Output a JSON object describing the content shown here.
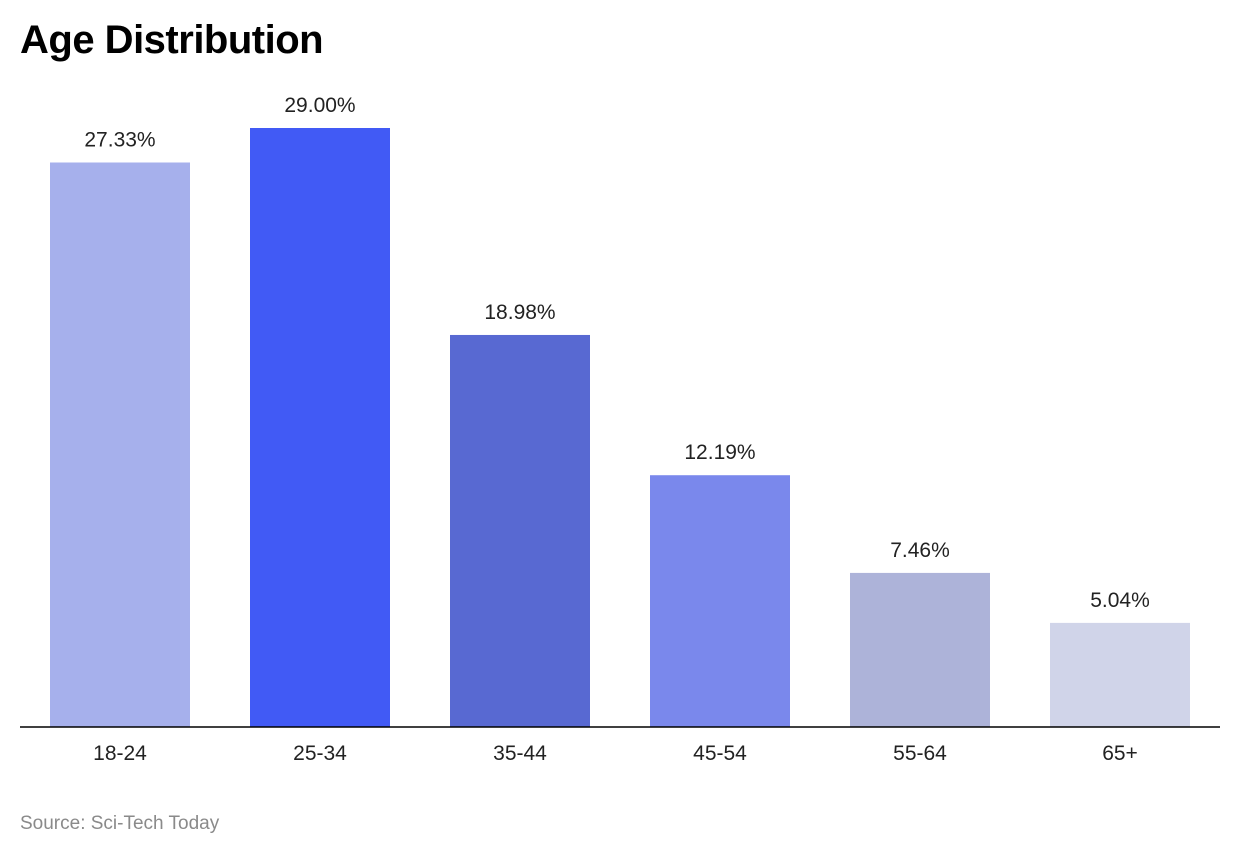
{
  "chart_data": {
    "type": "bar",
    "title": "Age Distribution",
    "categories": [
      "18-24",
      "25-34",
      "35-44",
      "45-54",
      "55-64",
      "65+"
    ],
    "values": [
      27.33,
      29.0,
      18.98,
      12.19,
      7.46,
      5.04
    ],
    "value_labels": [
      "27.33%",
      "29.00%",
      "18.98%",
      "12.19%",
      "7.46%",
      "5.04%"
    ],
    "bar_colors": [
      "#a6b0ec",
      "#415af5",
      "#5869d2",
      "#7a88ec",
      "#adb3d9",
      "#d0d4e9"
    ],
    "ylim": [
      0,
      29
    ],
    "xlabel": "",
    "ylabel": "",
    "grid": false,
    "legend": "none"
  },
  "source": "Source: Sci-Tech Today"
}
